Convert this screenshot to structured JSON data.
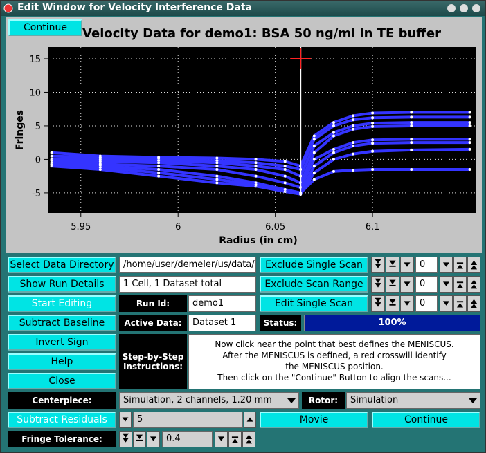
{
  "window": {
    "title": "Edit Window for Velocity Interference Data"
  },
  "chart_data": {
    "type": "line",
    "title": "Velocity Data for demo1: BSA 50 ng/ml in TE buffer",
    "x_label": "Radius (in cm)",
    "y_label": "Fringes",
    "x": [
      5.935,
      5.96,
      5.99,
      6.02,
      6.04,
      6.055,
      6.063,
      6.07,
      6.08,
      6.09,
      6.1,
      6.12,
      6.15
    ],
    "series": [
      {
        "color": "#3434ff",
        "values": [
          1.0,
          0.5,
          0.3,
          0.2,
          0.0,
          -0.3,
          -1.0,
          3.5,
          5.5,
          6.5,
          6.9,
          7.0,
          7.0
        ]
      },
      {
        "color": "#3434ff",
        "values": [
          0.5,
          0.3,
          0.0,
          -0.2,
          -0.5,
          -1.0,
          -1.5,
          3.0,
          5.0,
          5.9,
          6.2,
          6.3,
          6.3
        ]
      },
      {
        "color": "#3434ff",
        "values": [
          0.0,
          0.0,
          -0.2,
          -0.5,
          -1.0,
          -1.5,
          -2.5,
          2.0,
          4.0,
          5.0,
          5.4,
          5.5,
          5.5
        ]
      },
      {
        "color": "#3434ff",
        "values": [
          -0.2,
          -0.3,
          -0.5,
          -1.0,
          -1.5,
          -2.5,
          -3.5,
          1.0,
          3.5,
          4.5,
          4.9,
          5.0,
          5.0
        ]
      },
      {
        "color": "#3434ff",
        "values": [
          -0.5,
          -0.7,
          -1.0,
          -1.5,
          -2.5,
          -3.5,
          -4.2,
          0.0,
          1.5,
          2.5,
          2.9,
          3.0,
          3.0
        ]
      },
      {
        "color": "#3434ff",
        "values": [
          -0.7,
          -1.0,
          -1.5,
          -2.5,
          -3.5,
          -4.5,
          -5.0,
          -1.0,
          1.0,
          2.0,
          2.4,
          2.5,
          2.5
        ]
      },
      {
        "color": "#3434ff",
        "values": [
          -1.0,
          -1.5,
          -2.5,
          -3.5,
          -4.0,
          -4.8,
          -5.2,
          -2.0,
          0.0,
          0.8,
          1.2,
          1.4,
          1.5
        ]
      },
      {
        "color": "#3434ff",
        "values": [
          -0.8,
          -1.2,
          -2.0,
          -3.0,
          -3.8,
          -4.5,
          -5.0,
          -3.0,
          -1.8,
          -1.6,
          -1.5,
          -1.5,
          -1.5
        ]
      }
    ],
    "xlim": [
      5.933,
      6.153
    ],
    "ylim": [
      -8,
      16.75
    ],
    "xticks": [
      5.95,
      6,
      6.05,
      6.1
    ],
    "yticks": [
      -5,
      0,
      5,
      10,
      15
    ],
    "grid": true,
    "meniscus": {
      "x": 6.063,
      "y": 15
    }
  },
  "controls": {
    "continue_top": "Continue",
    "select_dir": "Select Data Directory",
    "dir_path": "/home/user/demeler/us/data/",
    "show_run": "Show Run Details",
    "run_info": "1 Cell, 1 Dataset total",
    "start_editing": "Start Editing",
    "run_id_label": "Run Id:",
    "run_id": "demo1",
    "subtract_baseline": "Subtract Baseline",
    "active_data_label": "Active Data:",
    "active_data": "Dataset 1",
    "invert_sign": "Invert Sign",
    "help": "Help",
    "close": "Close",
    "step_label": "Step-by-Step Instructions:",
    "instructions": [
      "Now click near the point that best defines the MENISCUS.",
      "After the MENISCUS is defined, a red crosswill identify",
      "the MENISCUS position.",
      "Then click on the \"Continue\" Button to align the scans..."
    ],
    "exclude_single": "Exclude Single Scan",
    "exclude_single_value": 0,
    "exclude_range": "Exclude Scan Range",
    "exclude_range_value": 0,
    "edit_single": "Edit Single Scan",
    "edit_single_value": 0,
    "status_label": "Status:",
    "status": {
      "value": 100,
      "label": "100%"
    },
    "centerpiece_label": "Centerpiece:",
    "centerpiece": "Simulation, 2 channels, 1.20 mm",
    "rotor_label": "Rotor:",
    "rotor": "Simulation",
    "subtract_residuals": "Subtract Residuals",
    "residuals_value": 5,
    "movie": "Movie",
    "continue_bottom": "Continue",
    "fringe_label": "Fringe Tolerance:",
    "fringe_value": 0.4
  }
}
